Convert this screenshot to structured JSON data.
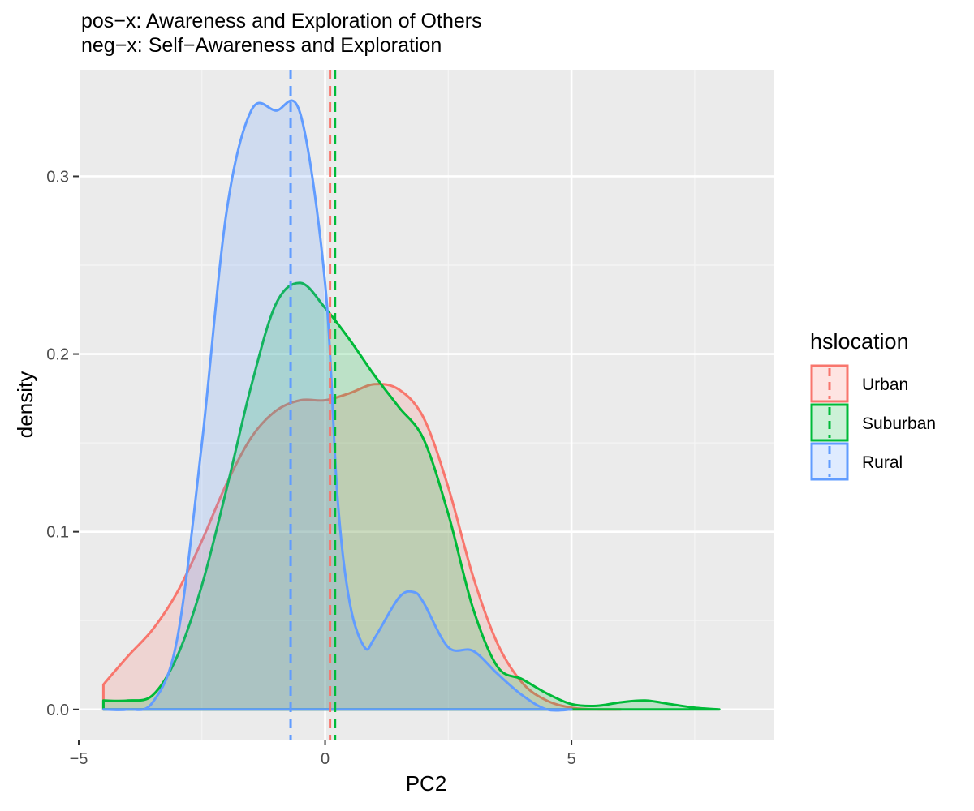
{
  "chart_data": {
    "type": "area",
    "subtype": "density",
    "title_lines": [
      "pos−x: Awareness and Exploration of Others",
      "neg−x: Self−Awareness and Exploration"
    ],
    "xlabel": "PC2",
    "ylabel": "density",
    "xlim": [
      -5.0,
      9.1
    ],
    "ylim": [
      -0.017,
      0.36
    ],
    "x_ticks": [
      -5,
      0,
      5
    ],
    "x_tick_labels": [
      "−5",
      "0",
      "5"
    ],
    "y_ticks": [
      0.0,
      0.1,
      0.2,
      0.3
    ],
    "y_tick_labels": [
      "0.0",
      "0.1",
      "0.2",
      "0.3"
    ],
    "grid": true,
    "legend": {
      "title": "hslocation",
      "position": "right"
    },
    "colors": {
      "panel_bg": "#EBEBEB",
      "grid_major": "#FFFFFF",
      "grid_minor": "#F5F5F5",
      "Urban": "#F8766D",
      "Suburban": "#00BA38",
      "Rural": "#619CFF"
    },
    "series": [
      {
        "name": "Urban",
        "color": "#F8766D",
        "mean": 0.1,
        "x": [
          -4.5,
          -4.0,
          -3.5,
          -3.0,
          -2.5,
          -2.0,
          -1.5,
          -1.0,
          -0.5,
          0.0,
          0.5,
          1.0,
          1.5,
          2.0,
          2.5,
          3.0,
          3.5,
          4.0,
          4.5,
          5.0,
          5.5,
          6.0
        ],
        "values": [
          0.014,
          0.03,
          0.045,
          0.066,
          0.095,
          0.127,
          0.153,
          0.168,
          0.174,
          0.174,
          0.178,
          0.183,
          0.18,
          0.164,
          0.125,
          0.075,
          0.037,
          0.015,
          0.005,
          0.001,
          0.0,
          0.0
        ]
      },
      {
        "name": "Suburban",
        "color": "#00BA38",
        "mean": 0.2,
        "x": [
          -4.5,
          -4.0,
          -3.5,
          -3.0,
          -2.5,
          -2.0,
          -1.5,
          -1.0,
          -0.5,
          0.0,
          0.5,
          1.0,
          1.5,
          2.0,
          2.5,
          3.0,
          3.5,
          4.0,
          4.5,
          5.0,
          5.5,
          6.0,
          6.5,
          7.0,
          7.5,
          8.0
        ],
        "values": [
          0.005,
          0.005,
          0.008,
          0.03,
          0.07,
          0.124,
          0.182,
          0.228,
          0.24,
          0.226,
          0.208,
          0.188,
          0.17,
          0.152,
          0.11,
          0.057,
          0.024,
          0.017,
          0.009,
          0.003,
          0.002,
          0.004,
          0.005,
          0.003,
          0.001,
          0.0
        ]
      },
      {
        "name": "Rural",
        "color": "#619CFF",
        "mean": -0.7,
        "x": [
          -4.5,
          -4.0,
          -3.5,
          -3.0,
          -2.5,
          -2.0,
          -1.5,
          -1.0,
          -0.5,
          0.0,
          0.25,
          0.5,
          0.8,
          1.0,
          1.5,
          1.8,
          2.0,
          2.5,
          3.0,
          3.5,
          4.0,
          4.5,
          5.0
        ],
        "values": [
          0.0,
          0.0,
          0.004,
          0.04,
          0.15,
          0.28,
          0.337,
          0.337,
          0.335,
          0.24,
          0.12,
          0.06,
          0.035,
          0.04,
          0.063,
          0.066,
          0.06,
          0.035,
          0.033,
          0.02,
          0.008,
          0.0,
          0.0
        ]
      }
    ]
  }
}
